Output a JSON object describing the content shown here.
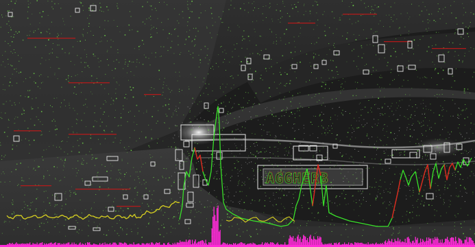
{
  "image": {
    "description_visible": "",
    "plate_text": "AGGHERB"
  },
  "colors": {
    "background_dark": "#2a2a2a",
    "noise_green": "#6fd34a",
    "box_white": "#e8e8e8",
    "trace_green": "#39e02a",
    "trace_red": "#e02020",
    "trace_yellow": "#d8d020",
    "histogram_magenta": "#ff2ad8",
    "scanline_red": "#c81818"
  }
}
